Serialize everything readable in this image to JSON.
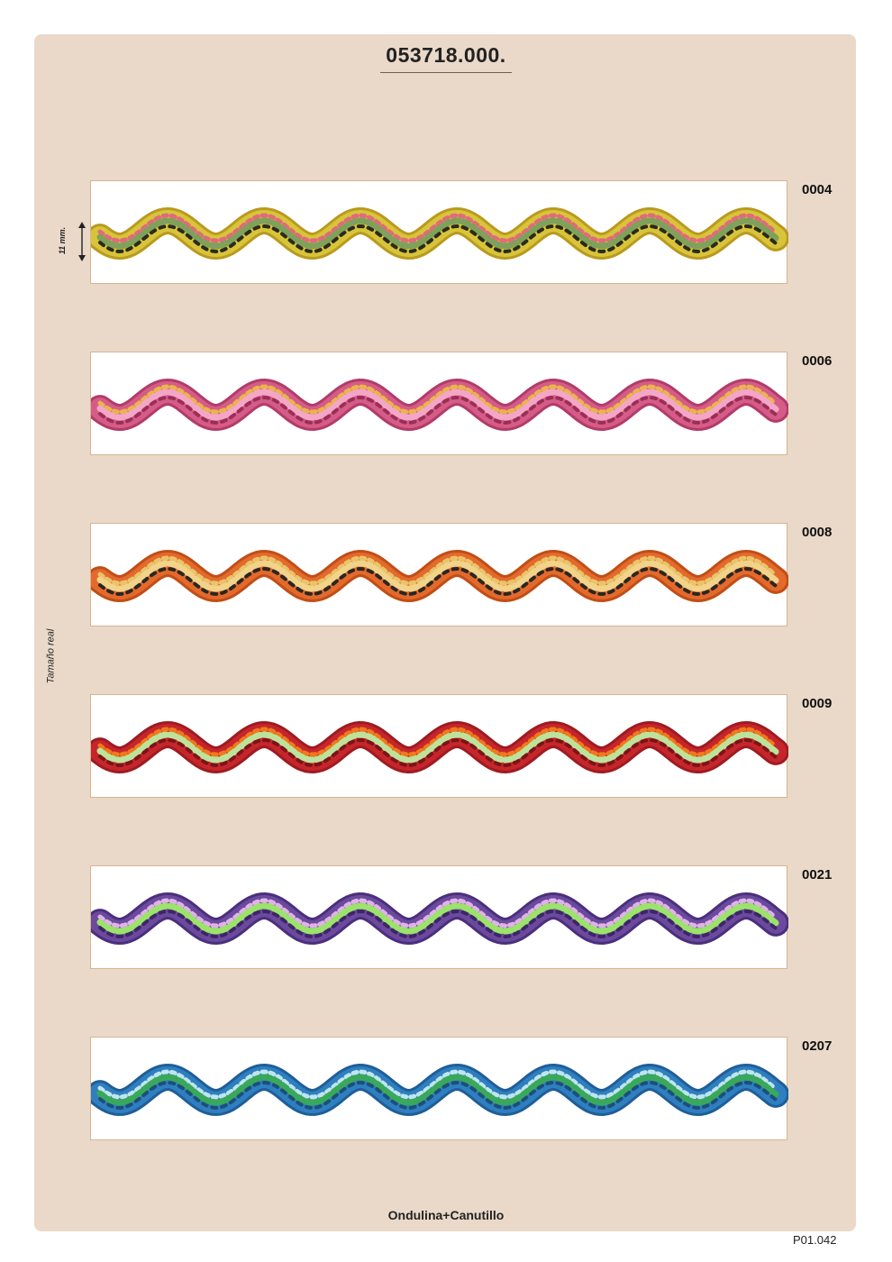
{
  "document": {
    "title": "053718.000.",
    "footer_label": "Ondulina+Canutillo",
    "page_ref": "P01.042",
    "size_annotation": "11 mm.",
    "real_size_label": "Tamaño real"
  },
  "swatches": [
    {
      "code": "0004",
      "base": "#d8c43a",
      "edge": "#b99a1e",
      "accent": "#e06b7a",
      "bead": "#7fa15a",
      "dark": "#2b2a1c"
    },
    {
      "code": "0006",
      "base": "#d65c88",
      "edge": "#b23b6a",
      "accent": "#e9b54a",
      "bead": "#f4a6c8",
      "dark": "#9a2f55"
    },
    {
      "code": "0008",
      "base": "#e36a2c",
      "edge": "#c04e16",
      "accent": "#e9c46a",
      "bead": "#f1d38a",
      "dark": "#2a2622"
    },
    {
      "code": "0009",
      "base": "#c6262b",
      "edge": "#9e1b22",
      "accent": "#f07a1a",
      "bead": "#bde39b",
      "dark": "#7a1418"
    },
    {
      "code": "0021",
      "base": "#6b4a9e",
      "edge": "#4b2f7c",
      "accent": "#e0b3e8",
      "bead": "#9be36a",
      "dark": "#3d2566"
    },
    {
      "code": "0207",
      "base": "#2f7fc0",
      "edge": "#1f5e98",
      "accent": "#bfe6ee",
      "bead": "#3aa85a",
      "dark": "#1b4f7a"
    }
  ]
}
